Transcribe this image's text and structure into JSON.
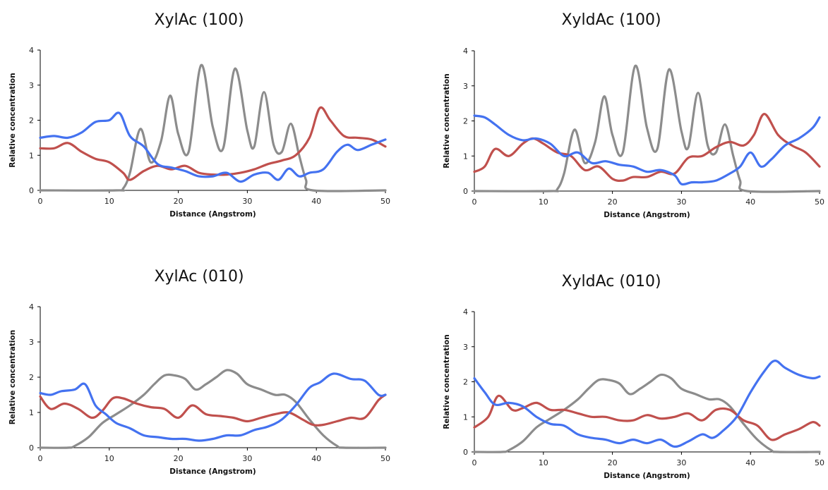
{
  "chart_data": [
    {
      "type": "line",
      "title": "XylAc (100)",
      "xlabel": "Distance (Angstrom)",
      "ylabel": "Relative concentration",
      "xlim": [
        0,
        50
      ],
      "ylim": [
        0,
        4
      ],
      "xticks": [
        0,
        10,
        20,
        30,
        40,
        50
      ],
      "yticks": [
        0,
        1,
        2,
        3,
        4
      ],
      "grid": false,
      "series": [
        {
          "color": "#8c8c8c",
          "x": [
            0,
            11,
            12,
            13,
            14.5,
            16,
            17.5,
            18.8,
            20,
            21.5,
            23.3,
            25,
            26.5,
            28.2,
            30,
            31,
            32.4,
            33.8,
            35,
            36.3,
            37.5,
            38.5,
            39.5,
            50
          ],
          "y": [
            0,
            0,
            0.05,
            0.5,
            1.75,
            0.8,
            1.4,
            2.7,
            1.6,
            1.1,
            3.57,
            1.8,
            1.2,
            3.47,
            1.7,
            1.25,
            2.8,
            1.3,
            1.1,
            1.9,
            1.0,
            0.3,
            0,
            0
          ]
        },
        {
          "color": "#c0504d",
          "x": [
            0,
            2,
            4,
            6,
            8,
            10,
            12,
            13,
            15,
            17,
            19,
            21,
            23,
            25,
            27,
            29,
            31,
            33,
            35,
            37,
            39,
            40.5,
            42,
            44,
            46,
            48,
            50
          ],
          "y": [
            1.2,
            1.2,
            1.35,
            1.1,
            0.9,
            0.8,
            0.5,
            0.3,
            0.55,
            0.7,
            0.6,
            0.7,
            0.5,
            0.45,
            0.45,
            0.5,
            0.6,
            0.75,
            0.85,
            1.0,
            1.5,
            2.35,
            2.0,
            1.55,
            1.5,
            1.45,
            1.25
          ]
        },
        {
          "color": "#4472f0",
          "x": [
            0,
            2,
            4,
            6,
            8,
            10,
            11.5,
            13,
            15,
            17,
            19,
            21,
            23,
            25,
            27,
            29,
            31,
            33,
            34.5,
            36,
            37.5,
            39,
            41,
            43,
            44.5,
            46,
            48,
            50
          ],
          "y": [
            1.5,
            1.55,
            1.5,
            1.65,
            1.95,
            2.0,
            2.2,
            1.55,
            1.25,
            0.75,
            0.65,
            0.55,
            0.4,
            0.4,
            0.5,
            0.25,
            0.45,
            0.5,
            0.3,
            0.62,
            0.4,
            0.5,
            0.6,
            1.1,
            1.3,
            1.15,
            1.3,
            1.45
          ]
        }
      ]
    },
    {
      "type": "line",
      "title": "XyldAc (100)",
      "xlabel": "Distance (Angstrom)",
      "ylabel": "Relative concentration",
      "xlim": [
        0,
        50
      ],
      "ylim": [
        0,
        4
      ],
      "xticks": [
        0,
        10,
        20,
        30,
        40,
        50
      ],
      "yticks": [
        0,
        1,
        2,
        3,
        4
      ],
      "grid": false,
      "series": [
        {
          "color": "#8c8c8c",
          "x": [
            0,
            11,
            12,
            13,
            14.5,
            16,
            17.5,
            18.8,
            20,
            21.5,
            23.3,
            25,
            26.5,
            28.2,
            30,
            31,
            32.4,
            33.8,
            35,
            36.3,
            37.5,
            38.5,
            39.5,
            50
          ],
          "y": [
            0,
            0,
            0.05,
            0.5,
            1.75,
            0.8,
            1.4,
            2.7,
            1.6,
            1.1,
            3.57,
            1.8,
            1.2,
            3.47,
            1.7,
            1.25,
            2.8,
            1.3,
            1.1,
            1.9,
            1.0,
            0.3,
            0,
            0
          ]
        },
        {
          "color": "#c0504d",
          "x": [
            0,
            1.5,
            3,
            5,
            7,
            8.5,
            10,
            12,
            14,
            16,
            18,
            20,
            21.5,
            23,
            25,
            27,
            29,
            31,
            33,
            35,
            37,
            39,
            40.5,
            42,
            44,
            46,
            48,
            50
          ],
          "y": [
            0.55,
            0.7,
            1.2,
            1.0,
            1.35,
            1.5,
            1.35,
            1.1,
            1.0,
            0.6,
            0.7,
            0.35,
            0.3,
            0.4,
            0.4,
            0.55,
            0.5,
            0.95,
            1.0,
            1.25,
            1.4,
            1.3,
            1.6,
            2.2,
            1.6,
            1.3,
            1.1,
            0.7
          ]
        },
        {
          "color": "#4472f0",
          "x": [
            0,
            1.5,
            3,
            5,
            7,
            9,
            11,
            13,
            15,
            17,
            19,
            21,
            23,
            25,
            27,
            29,
            30,
            31.5,
            33,
            35,
            37,
            38.5,
            40,
            41.5,
            43,
            45,
            47,
            49,
            50
          ],
          "y": [
            2.15,
            2.1,
            1.9,
            1.6,
            1.45,
            1.5,
            1.35,
            1.0,
            1.1,
            0.8,
            0.85,
            0.75,
            0.7,
            0.55,
            0.6,
            0.45,
            0.2,
            0.25,
            0.25,
            0.3,
            0.5,
            0.7,
            1.1,
            0.7,
            0.9,
            1.3,
            1.5,
            1.8,
            2.1
          ]
        }
      ]
    },
    {
      "type": "line",
      "title": "XylAc (010)",
      "xlabel": "Distance (Angstrom)",
      "ylabel": "Relative concentration",
      "xlim": [
        0,
        50
      ],
      "ylim": [
        0,
        4
      ],
      "xticks": [
        0,
        10,
        20,
        30,
        40,
        50
      ],
      "yticks": [
        0,
        1,
        2,
        3,
        4
      ],
      "grid": false,
      "series": [
        {
          "color": "#8c8c8c",
          "x": [
            0,
            4,
            5,
            7,
            9,
            11,
            13,
            15,
            16.5,
            18,
            19.5,
            21,
            22.5,
            24,
            25.5,
            27,
            28.5,
            30,
            32,
            34,
            35.5,
            37,
            39,
            41,
            43,
            44,
            50
          ],
          "y": [
            0,
            0,
            0.05,
            0.3,
            0.7,
            0.95,
            1.2,
            1.5,
            1.8,
            2.05,
            2.05,
            1.95,
            1.65,
            1.8,
            2.0,
            2.2,
            2.1,
            1.8,
            1.65,
            1.5,
            1.5,
            1.3,
            0.8,
            0.35,
            0.05,
            0,
            0
          ]
        },
        {
          "color": "#c0504d",
          "x": [
            0,
            1.5,
            3.5,
            5.5,
            7.5,
            9,
            10.5,
            12,
            14,
            16,
            18,
            20,
            22,
            24,
            26,
            28,
            30,
            32,
            34,
            36,
            38,
            39.5,
            41,
            43,
            45,
            47,
            49,
            50
          ],
          "y": [
            1.45,
            1.1,
            1.25,
            1.1,
            0.85,
            1.05,
            1.4,
            1.4,
            1.25,
            1.15,
            1.1,
            0.85,
            1.2,
            0.95,
            0.9,
            0.85,
            0.75,
            0.85,
            0.95,
            1.0,
            0.8,
            0.65,
            0.65,
            0.75,
            0.85,
            0.85,
            1.35,
            1.5
          ]
        },
        {
          "color": "#4472f0",
          "x": [
            0,
            1.5,
            3,
            5,
            6.5,
            8,
            9.5,
            11,
            13,
            15,
            17,
            19,
            21,
            23,
            25,
            27,
            29,
            31,
            33,
            35,
            37,
            39,
            40.5,
            42.5,
            45,
            47,
            49,
            50
          ],
          "y": [
            1.55,
            1.5,
            1.6,
            1.65,
            1.8,
            1.2,
            0.95,
            0.7,
            0.55,
            0.35,
            0.3,
            0.25,
            0.25,
            0.2,
            0.25,
            0.35,
            0.35,
            0.5,
            0.6,
            0.8,
            1.2,
            1.7,
            1.85,
            2.1,
            1.95,
            1.9,
            1.5,
            1.5
          ]
        }
      ]
    },
    {
      "type": "line",
      "title": "XyldAc (010)",
      "xlabel": "Distance (Angstrom)",
      "ylabel": "Relative concentration",
      "xlim": [
        0,
        50
      ],
      "ylim": [
        0,
        4
      ],
      "xticks": [
        0,
        10,
        20,
        30,
        40,
        50
      ],
      "yticks": [
        0,
        1,
        2,
        3,
        4
      ],
      "grid": false,
      "series": [
        {
          "color": "#8c8c8c",
          "x": [
            0,
            4,
            5,
            7,
            9,
            11,
            13,
            15,
            16.5,
            18,
            19.5,
            21,
            22.5,
            24,
            25.5,
            27,
            28.5,
            30,
            32,
            34,
            35.5,
            37,
            39,
            41,
            43,
            44,
            50
          ],
          "y": [
            0,
            0,
            0.05,
            0.3,
            0.7,
            0.95,
            1.2,
            1.5,
            1.8,
            2.05,
            2.05,
            1.95,
            1.65,
            1.8,
            2.0,
            2.2,
            2.1,
            1.8,
            1.65,
            1.5,
            1.5,
            1.3,
            0.8,
            0.35,
            0.05,
            0,
            0
          ]
        },
        {
          "color": "#c0504d",
          "x": [
            0,
            2,
            3.5,
            5.5,
            7,
            9,
            11,
            13,
            15,
            17,
            19,
            21,
            23,
            25,
            27,
            29,
            31,
            33,
            35,
            37,
            39,
            41,
            43,
            45,
            47,
            49,
            50
          ],
          "y": [
            0.7,
            1.0,
            1.6,
            1.2,
            1.25,
            1.4,
            1.2,
            1.2,
            1.1,
            1.0,
            1.0,
            0.9,
            0.9,
            1.05,
            0.95,
            1.0,
            1.1,
            0.9,
            1.2,
            1.2,
            0.9,
            0.75,
            0.35,
            0.5,
            0.65,
            0.85,
            0.75
          ]
        },
        {
          "color": "#4472f0",
          "x": [
            0,
            1.5,
            3,
            5,
            7,
            9,
            11,
            13,
            15,
            17,
            19,
            21,
            23,
            25,
            27,
            29,
            31,
            33,
            34.5,
            36,
            38,
            40,
            42,
            43.5,
            45,
            47,
            49,
            50
          ],
          "y": [
            2.1,
            1.7,
            1.35,
            1.4,
            1.3,
            1.0,
            0.8,
            0.75,
            0.5,
            0.4,
            0.35,
            0.25,
            0.35,
            0.25,
            0.35,
            0.15,
            0.3,
            0.5,
            0.4,
            0.6,
            1.0,
            1.7,
            2.3,
            2.6,
            2.4,
            2.2,
            2.1,
            2.15
          ]
        }
      ]
    }
  ]
}
